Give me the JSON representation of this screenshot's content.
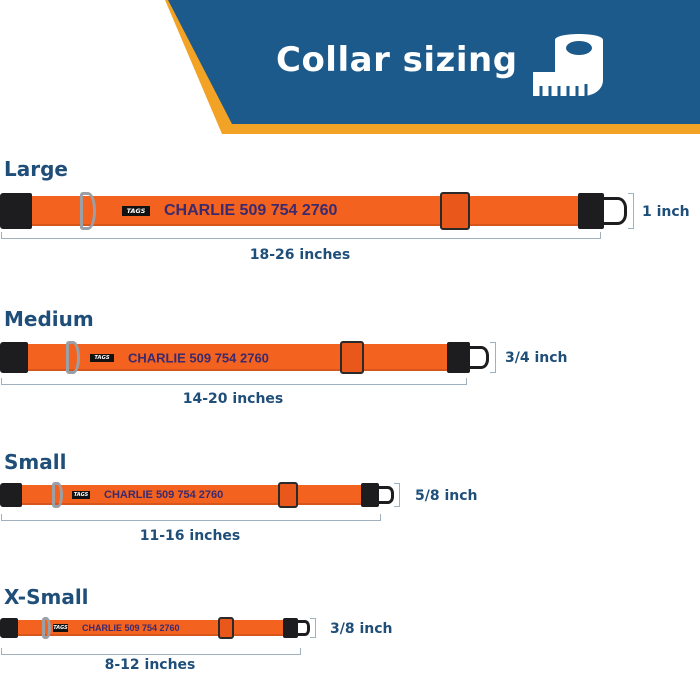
{
  "header": {
    "title": "Collar sizing",
    "icon": "measuring-tape-icon",
    "bg_color": "#1d5a8c",
    "accent_color": "#f2a325"
  },
  "collar_color": "#f4621f",
  "text_color": "#1f4e79",
  "sizes": [
    {
      "name": "Large",
      "length": "18-26 inches",
      "width": "1 inch",
      "engraving": "CHARLIE 509 754 2760",
      "brand": "TAGS"
    },
    {
      "name": "Medium",
      "length": "14-20 inches",
      "width": "3/4 inch",
      "engraving": "CHARLIE 509 754 2760",
      "brand": "TAGS"
    },
    {
      "name": "Small",
      "length": "11-16 inches",
      "width": "5/8 inch",
      "engraving": "CHARLIE 509 754 2760",
      "brand": "TAGS"
    },
    {
      "name": "X-Small",
      "length": "8-12 inches",
      "width": "3/8 inch",
      "engraving": "CHARLIE 509 754 2760",
      "brand": "TAGS"
    }
  ]
}
